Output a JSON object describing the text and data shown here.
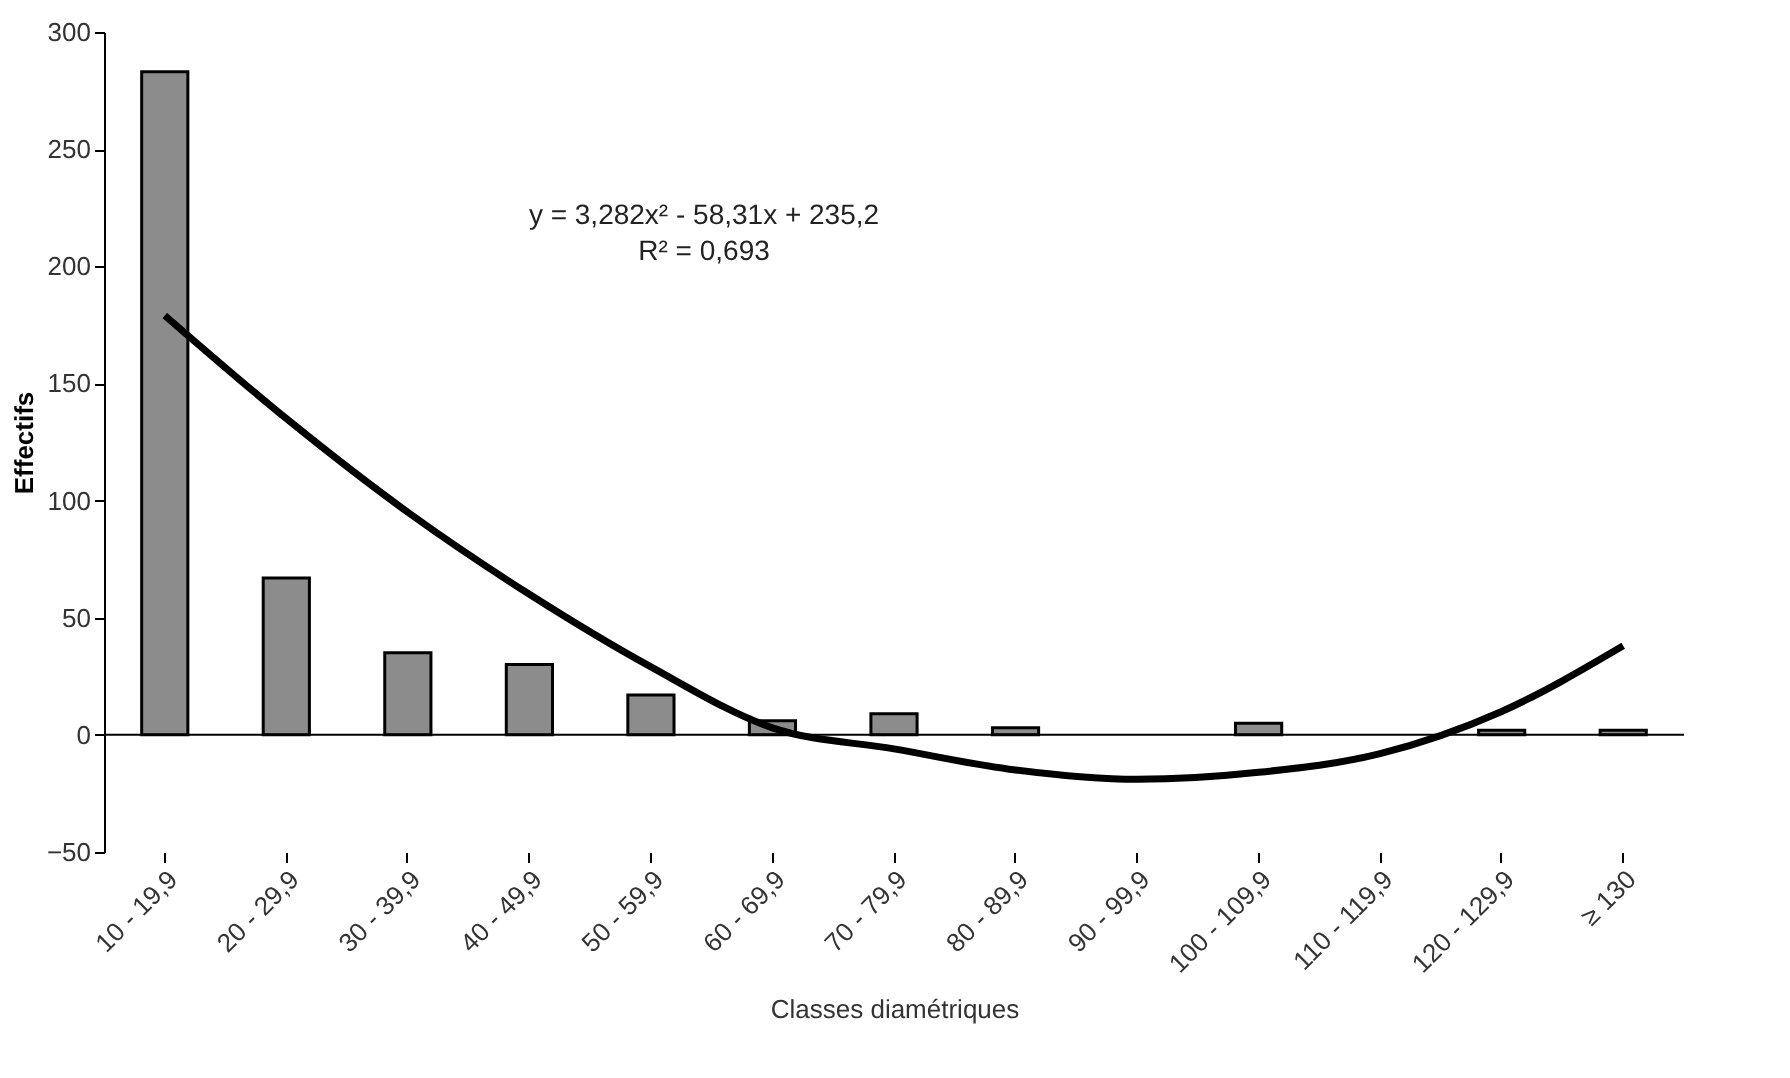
{
  "chart_data": {
    "type": "bar",
    "xlabel": "Classes diamétriques",
    "ylabel": "Effectifs",
    "categories": [
      "10 - 19,9",
      "20 - 29,9",
      "30 - 39,9",
      "40 - 49,9",
      "50 - 59,9",
      "60 - 69,9",
      "70 - 79,9",
      "80 - 89,9",
      "90 - 99,9",
      "100 - 109,9",
      "110 - 119,9",
      "120 - 129,9",
      "≥ 130"
    ],
    "series": [
      {
        "color": "#8c8c8c",
        "values": [
          283,
          67,
          35,
          30,
          17,
          6,
          9,
          3,
          0,
          5,
          0,
          2,
          2
        ]
      },
      {
        "type": "line",
        "color": "#000000",
        "values": [
          179,
          135,
          95,
          60,
          29,
          3,
          -6,
          -15,
          -19,
          -16,
          -8,
          10,
          38
        ]
      }
    ],
    "ylim": [
      -50,
      300
    ],
    "yticks": [
      -50,
      0,
      50,
      100,
      150,
      200,
      250,
      300
    ],
    "annotations": [
      "y = 3,282x² - 58,31x + 235,2",
      "R² = 0,693"
    ]
  }
}
